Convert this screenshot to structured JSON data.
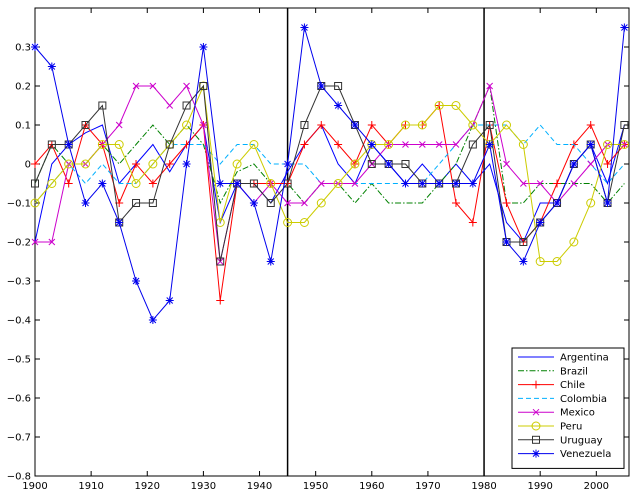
{
  "chart_data": {
    "type": "line",
    "xlim": [
      1900,
      2006
    ],
    "ylim": [
      -0.8,
      0.4
    ],
    "xticks": [
      1900,
      1910,
      1920,
      1930,
      1940,
      1950,
      1960,
      1970,
      1980,
      1990,
      2000
    ],
    "yticks": [
      -0.8,
      -0.7,
      -0.6,
      -0.5,
      -0.4,
      -0.3,
      -0.2,
      -0.1,
      0,
      0.1,
      0.2,
      0.3
    ],
    "ytick_labels": [
      "−0.8",
      "−0.7",
      "−0.6",
      "−0.5",
      "−0.4",
      "−0.3",
      "−0.2",
      "−0.1",
      "0",
      "0.1",
      "0.2",
      "0.3"
    ],
    "vlines": [
      1945,
      1980
    ],
    "grid": false,
    "legend_position": "bottom-right",
    "x": [
      1900,
      1903,
      1906,
      1909,
      1912,
      1915,
      1918,
      1921,
      1924,
      1927,
      1930,
      1933,
      1936,
      1939,
      1942,
      1945,
      1948,
      1951,
      1954,
      1957,
      1960,
      1963,
      1966,
      1969,
      1972,
      1975,
      1978,
      1981,
      1984,
      1987,
      1990,
      1993,
      1996,
      1999,
      2002,
      2005
    ],
    "series": [
      {
        "name": "Argentina",
        "color": "#0000ff",
        "dash": "",
        "marker": "none",
        "values": [
          -0.2,
          0.0,
          0.05,
          0.08,
          0.1,
          -0.05,
          0.0,
          0.05,
          -0.02,
          0.05,
          0.1,
          -0.15,
          -0.05,
          -0.05,
          -0.1,
          -0.02,
          0.05,
          0.1,
          0.0,
          -0.05,
          0.05,
          0.0,
          -0.05,
          0.0,
          -0.05,
          0.0,
          -0.05,
          0.0,
          -0.15,
          -0.2,
          -0.1,
          -0.1,
          0.0,
          0.05,
          -0.05,
          0.1
        ]
      },
      {
        "name": "Brazil",
        "color": "#008000",
        "dash": "6,2,1.5,2",
        "marker": "none",
        "values": [
          -0.05,
          0.05,
          0.0,
          0.0,
          0.05,
          0.0,
          0.05,
          0.1,
          0.05,
          0.1,
          0.05,
          -0.1,
          -0.02,
          0.0,
          -0.05,
          -0.05,
          -0.1,
          -0.05,
          -0.05,
          -0.1,
          -0.05,
          -0.1,
          -0.1,
          -0.1,
          -0.05,
          0.0,
          0.1,
          0.2,
          -0.1,
          -0.1,
          -0.05,
          -0.05,
          -0.05,
          -0.05,
          -0.1,
          -0.05
        ]
      },
      {
        "name": "Chile",
        "color": "#ff0000",
        "dash": "",
        "marker": "plus",
        "values": [
          0.0,
          0.05,
          -0.05,
          0.1,
          0.05,
          -0.1,
          0.0,
          -0.05,
          0.0,
          0.05,
          0.1,
          -0.35,
          -0.05,
          -0.05,
          -0.05,
          -0.05,
          0.05,
          0.1,
          0.05,
          0.0,
          0.1,
          0.05,
          0.1,
          0.1,
          0.15,
          -0.1,
          -0.15,
          0.1,
          -0.1,
          -0.2,
          -0.15,
          -0.05,
          0.05,
          0.1,
          0.0,
          0.05
        ]
      },
      {
        "name": "Colombia",
        "color": "#00b0ff",
        "dash": "5,3",
        "marker": "none",
        "values": [
          -0.1,
          -0.05,
          0.0,
          -0.05,
          0.0,
          -0.05,
          -0.05,
          0.0,
          0.05,
          0.05,
          0.05,
          0.0,
          0.05,
          0.05,
          0.0,
          0.0,
          0.0,
          -0.05,
          -0.05,
          -0.05,
          -0.05,
          -0.05,
          -0.05,
          -0.05,
          0.0,
          0.05,
          0.1,
          0.1,
          0.1,
          0.05,
          0.1,
          0.05,
          0.05,
          0.0,
          -0.05,
          0.0
        ]
      },
      {
        "name": "Mexico",
        "color": "#cc00cc",
        "dash": "",
        "marker": "x",
        "values": [
          -0.2,
          -0.2,
          0.0,
          0.0,
          0.05,
          0.1,
          0.2,
          0.2,
          0.15,
          0.2,
          0.1,
          -0.25,
          -0.05,
          -0.1,
          -0.05,
          -0.1,
          -0.1,
          -0.05,
          -0.05,
          -0.05,
          0.0,
          0.05,
          0.05,
          0.05,
          0.05,
          0.05,
          0.1,
          0.2,
          0.0,
          -0.05,
          -0.05,
          -0.1,
          -0.05,
          0.0,
          0.05,
          0.05
        ]
      },
      {
        "name": "Peru",
        "color": "#cccc00",
        "dash": "",
        "marker": "circle",
        "values": [
          -0.1,
          -0.05,
          0.0,
          0.0,
          0.05,
          0.05,
          -0.05,
          0.0,
          0.05,
          0.1,
          0.2,
          -0.15,
          0.0,
          0.05,
          -0.05,
          -0.15,
          -0.15,
          -0.1,
          -0.05,
          0.0,
          0.05,
          0.05,
          0.1,
          0.1,
          0.15,
          0.15,
          0.1,
          0.05,
          0.1,
          0.05,
          -0.25,
          -0.25,
          -0.2,
          -0.1,
          0.05,
          0.05
        ]
      },
      {
        "name": "Uruguay",
        "color": "#333333",
        "dash": "",
        "marker": "square",
        "values": [
          -0.05,
          0.05,
          0.05,
          0.1,
          0.15,
          -0.15,
          -0.1,
          -0.1,
          0.05,
          0.15,
          0.2,
          -0.25,
          -0.05,
          -0.05,
          -0.1,
          -0.05,
          0.1,
          0.2,
          0.2,
          0.1,
          0.0,
          0.0,
          0.0,
          -0.05,
          -0.05,
          -0.05,
          0.05,
          0.1,
          -0.2,
          -0.2,
          -0.15,
          -0.1,
          0.0,
          0.05,
          -0.1,
          0.1
        ]
      },
      {
        "name": "Venezuela",
        "color": "#0000ee",
        "dash": "",
        "marker": "star",
        "values": [
          0.3,
          0.25,
          0.05,
          -0.1,
          -0.05,
          -0.15,
          -0.3,
          -0.4,
          -0.35,
          0.0,
          0.3,
          -0.05,
          -0.05,
          -0.1,
          -0.25,
          0.0,
          0.35,
          0.2,
          0.15,
          0.1,
          0.05,
          0.0,
          -0.05,
          -0.05,
          -0.05,
          -0.05,
          -0.05,
          0.05,
          -0.2,
          -0.25,
          -0.15,
          -0.1,
          0.0,
          0.05,
          -0.1,
          0.35
        ]
      }
    ]
  }
}
